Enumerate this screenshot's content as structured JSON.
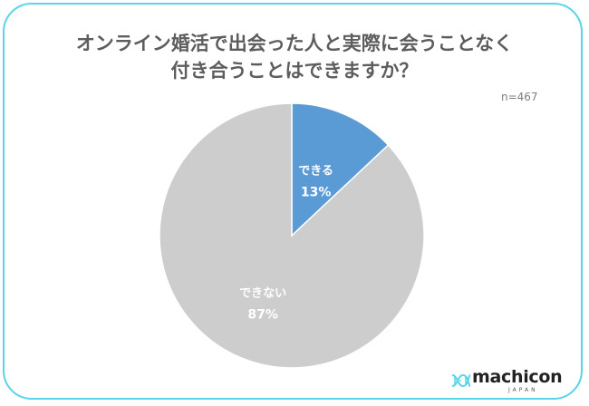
{
  "title_line1": "オンライン婚活で出会った人と実際に会うことなく",
  "title_line2": "付き合うことはできますか？",
  "sample_size": "n=467",
  "colors": {
    "border": "#59d4e8",
    "slice_can": "#5b9bd5",
    "slice_cannot": "#cdcdcd",
    "title": "#5d5d5d"
  },
  "chart_data": {
    "type": "pie",
    "title": "オンライン婚活で出会った人と実際に会うことなく付き合うことはできますか？",
    "categories": [
      "できる",
      "できない"
    ],
    "values": [
      13,
      87
    ],
    "value_labels": [
      "13%",
      "87%"
    ],
    "colors": [
      "#5b9bd5",
      "#cdcdcd"
    ],
    "start_angle": "12 o'clock, clockwise"
  },
  "logo": {
    "name": "machicon",
    "sub": "JAPAN",
    "icon": "dna-helix-icon"
  }
}
